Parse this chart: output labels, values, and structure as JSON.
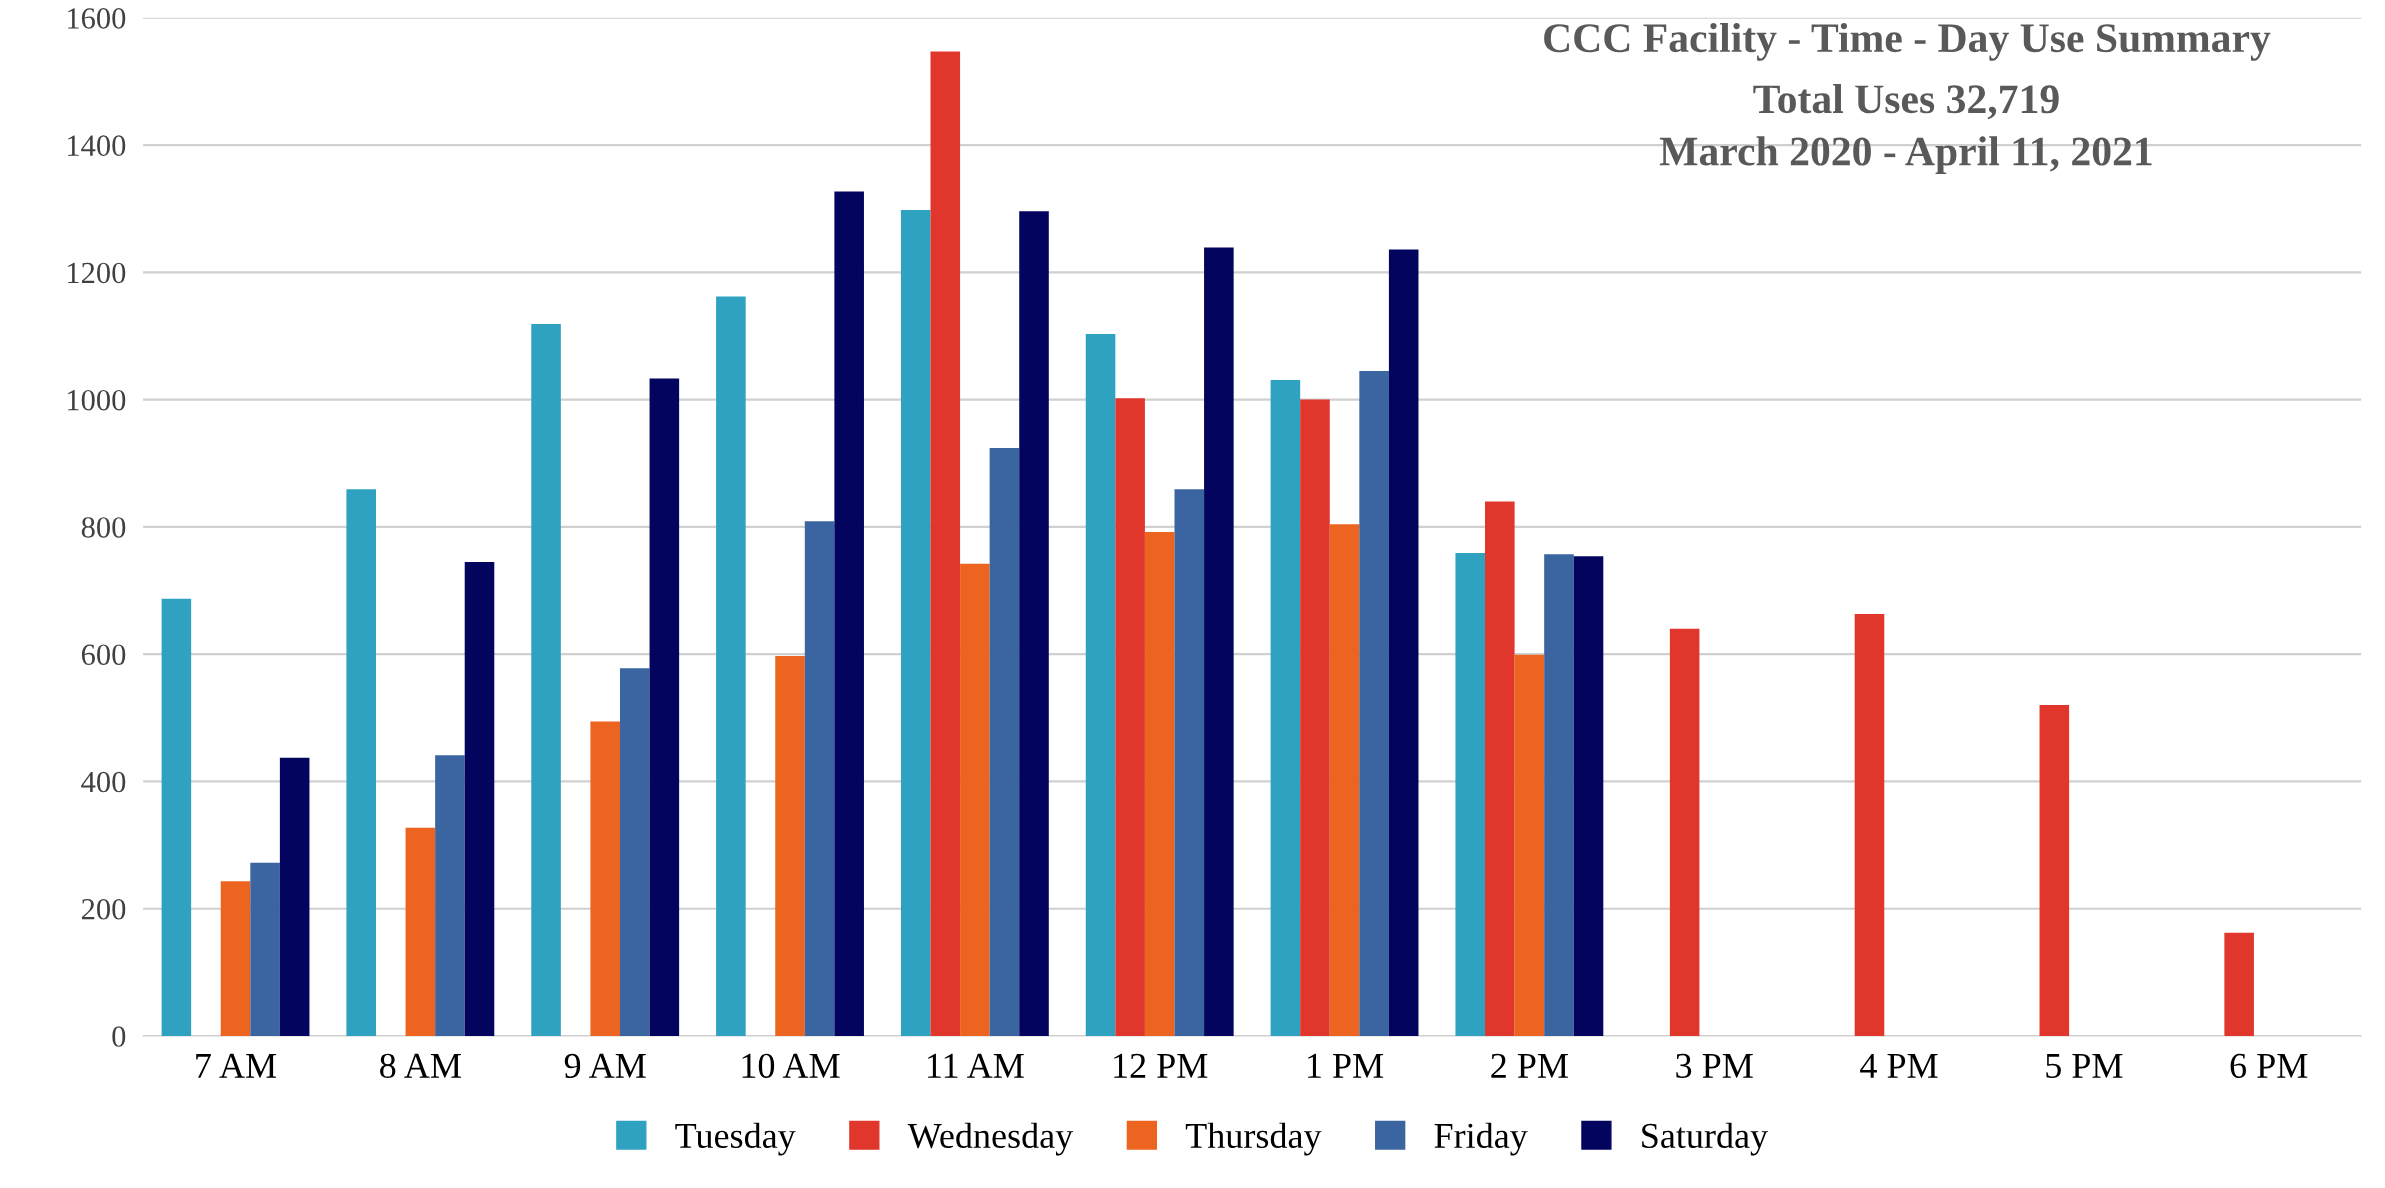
{
  "chart_data": {
    "type": "bar",
    "title": "CCC Facility - Time - Day Use Summary",
    "subtitle": "Total Uses 32,719\nMarch 2020 - April 11, 2021",
    "categories": [
      "7 AM",
      "8 AM",
      "9 AM",
      "10 AM",
      "11 AM",
      "12 PM",
      "1 PM",
      "2 PM",
      "3 PM",
      "4 PM",
      "5 PM",
      "6 PM"
    ],
    "series": [
      {
        "name": "Tuesday",
        "color": "#2ea2c0",
        "values": [
          687,
          859,
          1119,
          1162,
          1298,
          1103,
          1031,
          759,
          0,
          0,
          0,
          0
        ]
      },
      {
        "name": "Wednesday",
        "color": "#e0362c",
        "values": [
          0,
          0,
          0,
          0,
          1547,
          1002,
          1000,
          840,
          640,
          663,
          520,
          162
        ]
      },
      {
        "name": "Thursday",
        "color": "#ec6420",
        "values": [
          243,
          327,
          494,
          597,
          742,
          792,
          804,
          599,
          0,
          0,
          0,
          0
        ]
      },
      {
        "name": "Friday",
        "color": "#3a65a0",
        "values": [
          272,
          441,
          578,
          809,
          924,
          859,
          1045,
          757,
          0,
          0,
          0,
          0
        ]
      },
      {
        "name": "Saturday",
        "color": "#03045e",
        "values": [
          437,
          745,
          1033,
          1327,
          1296,
          1239,
          1236,
          754,
          0,
          0,
          0,
          0
        ]
      }
    ],
    "ylim": [
      0,
      1600
    ],
    "yticks": [
      0,
      200,
      400,
      600,
      800,
      1000,
      1200,
      1400,
      1600
    ],
    "grid": "y",
    "legend": "bottom"
  }
}
